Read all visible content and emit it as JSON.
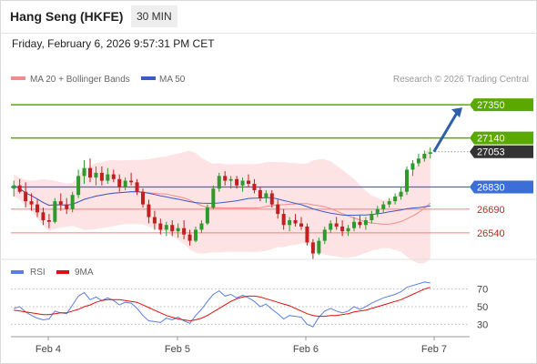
{
  "header": {
    "title": "Hang Seng (HKFE)",
    "timeframe": "30 MIN",
    "datetime": "Friday, February 6, 2026 9:57:31 PM CET"
  },
  "colors": {
    "bull": "#2d9a2d",
    "bear": "#c02020",
    "ma20": "#f28b8b",
    "ma50": "#3a5bc7",
    "band_fill": "#fde3e3",
    "resistance": "#5aa800",
    "pivot": "#3b6fd8",
    "support": "#f08080",
    "arrow": "#2e5fa8",
    "rsi": "#5b7fde",
    "rsi_ma": "#e01010",
    "current": "#333333"
  },
  "chart_data": [
    {
      "type": "candlestick",
      "title": "",
      "legend": [
        {
          "name": "MA 20 + Bollinger Bands",
          "color_key": "ma20"
        },
        {
          "name": "MA 50",
          "color_key": "ma50"
        }
      ],
      "legend_position": "top-left",
      "watermark": "Research © 2026 Trading Central",
      "x_ticks": [
        "Feb 4",
        "Feb 5",
        "Feb 6",
        "Feb 7"
      ],
      "ylim": [
        26390,
        27460
      ],
      "levels": [
        {
          "value": 27350,
          "label": "27350",
          "kind": "resistance"
        },
        {
          "value": 27140,
          "label": "27140",
          "kind": "resistance"
        },
        {
          "value": 27053,
          "label": "27053",
          "kind": "current"
        },
        {
          "value": 26830,
          "label": "26830",
          "kind": "pivot"
        },
        {
          "value": 26690,
          "label": "26690",
          "kind": "support"
        },
        {
          "value": 26540,
          "label": "26540",
          "kind": "support"
        }
      ],
      "target_arrow": {
        "from": 27053,
        "to": 27350
      },
      "candles": [
        [
          26820,
          26870,
          26770,
          26840
        ],
        [
          26840,
          26880,
          26790,
          26800
        ],
        [
          26800,
          26860,
          26700,
          26740
        ],
        [
          26740,
          26790,
          26680,
          26720
        ],
        [
          26720,
          26750,
          26640,
          26670
        ],
        [
          26670,
          26700,
          26590,
          26620
        ],
        [
          26620,
          26660,
          26570,
          26610
        ],
        [
          26610,
          26760,
          26600,
          26740
        ],
        [
          26740,
          26790,
          26680,
          26720
        ],
        [
          26720,
          26760,
          26660,
          26690
        ],
        [
          26690,
          26800,
          26670,
          26780
        ],
        [
          26780,
          26940,
          26760,
          26900
        ],
        [
          26900,
          27000,
          26850,
          26950
        ],
        [
          26950,
          27010,
          26860,
          26890
        ],
        [
          26890,
          26960,
          26840,
          26920
        ],
        [
          26920,
          26960,
          26840,
          26870
        ],
        [
          26870,
          26950,
          26850,
          26910
        ],
        [
          26910,
          26940,
          26860,
          26880
        ],
        [
          26880,
          26910,
          26800,
          26830
        ],
        [
          26830,
          26890,
          26810,
          26870
        ],
        [
          26870,
          26920,
          26840,
          26860
        ],
        [
          26860,
          26880,
          26780,
          26800
        ],
        [
          26800,
          26820,
          26700,
          26720
        ],
        [
          26720,
          26750,
          26600,
          26640
        ],
        [
          26640,
          26680,
          26560,
          26600
        ],
        [
          26600,
          26630,
          26530,
          26560
        ],
        [
          26560,
          26610,
          26520,
          26590
        ],
        [
          26590,
          26620,
          26520,
          26550
        ],
        [
          26550,
          26600,
          26510,
          26570
        ],
        [
          26570,
          26620,
          26500,
          26530
        ],
        [
          26530,
          26560,
          26460,
          26490
        ],
        [
          26490,
          26580,
          26480,
          26560
        ],
        [
          26560,
          26620,
          26540,
          26600
        ],
        [
          26600,
          26720,
          26590,
          26700
        ],
        [
          26700,
          26840,
          26690,
          26820
        ],
        [
          26820,
          26920,
          26800,
          26900
        ],
        [
          26900,
          26930,
          26840,
          26870
        ],
        [
          26870,
          26900,
          26820,
          26880
        ],
        [
          26880,
          26900,
          26820,
          26840
        ],
        [
          26840,
          26890,
          26800,
          26870
        ],
        [
          26870,
          26910,
          26830,
          26850
        ],
        [
          26850,
          26880,
          26790,
          26810
        ],
        [
          26810,
          26830,
          26740,
          26760
        ],
        [
          26760,
          26810,
          26730,
          26790
        ],
        [
          26790,
          26810,
          26700,
          26720
        ],
        [
          26720,
          26750,
          26630,
          26660
        ],
        [
          26660,
          26690,
          26560,
          26590
        ],
        [
          26590,
          26640,
          26550,
          26620
        ],
        [
          26620,
          26660,
          26580,
          26600
        ],
        [
          26600,
          26640,
          26560,
          26580
        ],
        [
          26580,
          26600,
          26460,
          26480
        ],
        [
          26480,
          26500,
          26370,
          26410
        ],
        [
          26410,
          26510,
          26400,
          26490
        ],
        [
          26490,
          26580,
          26470,
          26560
        ],
        [
          26560,
          26620,
          26540,
          26600
        ],
        [
          26600,
          26640,
          26560,
          26580
        ],
        [
          26580,
          26620,
          26520,
          26550
        ],
        [
          26550,
          26590,
          26520,
          26570
        ],
        [
          26570,
          26640,
          26550,
          26610
        ],
        [
          26610,
          26650,
          26570,
          26590
        ],
        [
          26590,
          26640,
          26560,
          26620
        ],
        [
          26620,
          26680,
          26600,
          26660
        ],
        [
          26660,
          26710,
          26640,
          26690
        ],
        [
          26690,
          26740,
          26670,
          26720
        ],
        [
          26720,
          26760,
          26700,
          26740
        ],
        [
          26740,
          26790,
          26720,
          26770
        ],
        [
          26770,
          26830,
          26750,
          26800
        ],
        [
          26800,
          26960,
          26780,
          26940
        ],
        [
          26940,
          27000,
          26900,
          26980
        ],
        [
          26980,
          27040,
          26960,
          27010
        ],
        [
          27010,
          27060,
          26990,
          27040
        ],
        [
          27040,
          27080,
          27010,
          27050
        ]
      ]
    },
    {
      "type": "line",
      "title": "",
      "legend": [
        {
          "name": "RSI",
          "color_key": "rsi"
        },
        {
          "name": "9MA",
          "color_key": "rsi_ma"
        }
      ],
      "legend_position": "top-left",
      "ylim": [
        20,
        80
      ],
      "y_ticks": [
        70,
        50,
        30
      ],
      "series": [
        {
          "name": "RSI",
          "values": [
            48,
            50,
            44,
            40,
            37,
            35,
            36,
            45,
            43,
            42,
            52,
            62,
            66,
            58,
            61,
            57,
            60,
            57,
            52,
            55,
            54,
            48,
            40,
            34,
            33,
            32,
            37,
            35,
            38,
            34,
            31,
            40,
            47,
            56,
            64,
            68,
            62,
            64,
            60,
            63,
            60,
            56,
            50,
            53,
            47,
            42,
            36,
            40,
            39,
            38,
            30,
            27,
            38,
            45,
            48,
            45,
            43,
            45,
            50,
            47,
            50,
            54,
            57,
            60,
            62,
            64,
            67,
            72,
            74,
            76,
            78,
            77
          ]
        },
        {
          "name": "9MA",
          "values": [
            46,
            45,
            44,
            43,
            42,
            41,
            41,
            42,
            43,
            43,
            45,
            47,
            50,
            52,
            55,
            57,
            58,
            58,
            58,
            57,
            56,
            55,
            52,
            49,
            46,
            43,
            40,
            38,
            36,
            35,
            34,
            35,
            37,
            40,
            44,
            48,
            52,
            56,
            59,
            61,
            62,
            62,
            61,
            59,
            57,
            55,
            53,
            51,
            48,
            45,
            42,
            40,
            39,
            39,
            40,
            40,
            41,
            42,
            44,
            45,
            46,
            48,
            50,
            52,
            54,
            56,
            58,
            61,
            64,
            67,
            70,
            72
          ]
        }
      ]
    }
  ]
}
